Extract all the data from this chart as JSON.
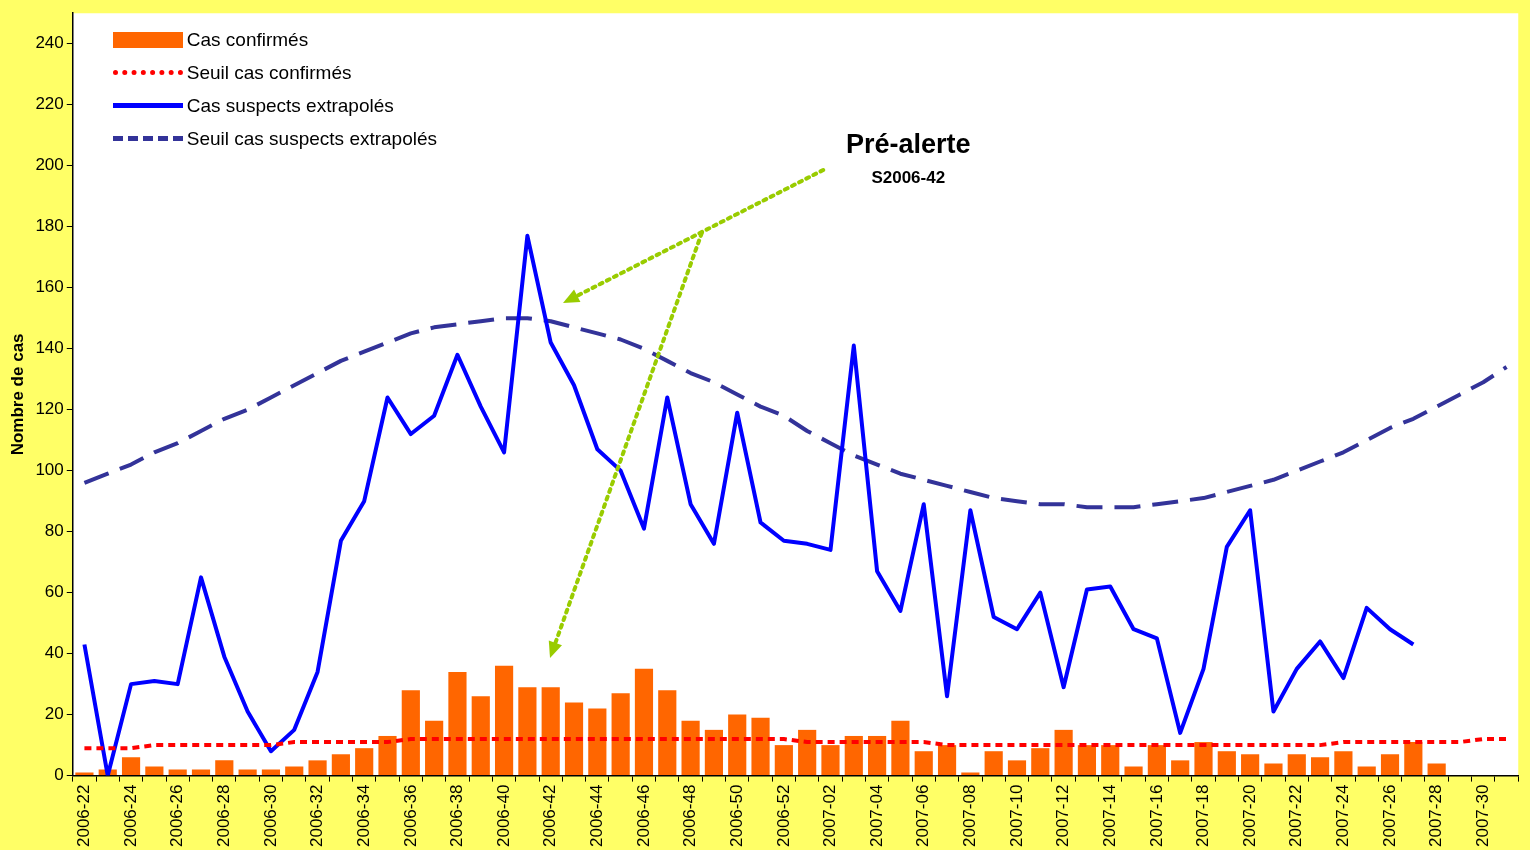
{
  "chart_data": {
    "type": "bar",
    "ylabel": "Nombre de cas",
    "ylim": [
      0,
      250
    ],
    "yticks": [
      0,
      20,
      40,
      60,
      80,
      100,
      120,
      140,
      160,
      180,
      200,
      220,
      240
    ],
    "grid": false,
    "legend": "top left",
    "marker": "none",
    "categories": [
      "2006-22",
      null,
      "2006-24",
      null,
      "2006-26",
      null,
      "2006-28",
      null,
      "2006-30",
      null,
      "2006-32",
      null,
      "2006-34",
      null,
      "2006-36",
      null,
      "2006-38",
      null,
      "2006-40",
      null,
      "2006-42",
      null,
      "2006-44",
      null,
      "2006-46",
      null,
      "2006-48",
      null,
      "2006-50",
      null,
      "2006-52",
      null,
      "2007-02",
      null,
      "2007-04",
      null,
      "2007-06",
      null,
      "2007-08",
      null,
      "2007-10",
      null,
      "2007-12",
      null,
      "2007-14",
      null,
      "2007-16",
      null,
      "2007-18",
      null,
      "2007-20",
      null,
      "2007-22",
      null,
      "2007-24",
      null,
      "2007-26",
      null,
      "2007-28",
      null,
      "2007-30",
      null
    ],
    "series": [
      {
        "name": "Cas confirmés",
        "color": "#ff6600",
        "values": [
          1,
          2,
          6,
          3,
          2,
          2,
          5,
          2,
          2,
          3,
          5,
          7,
          9,
          13,
          28,
          18,
          34,
          26,
          36,
          29,
          29,
          24,
          22,
          27,
          35,
          28,
          18,
          15,
          20,
          19,
          10,
          15,
          10,
          13,
          13,
          18,
          8,
          10,
          1,
          8,
          5,
          9,
          15,
          10,
          10,
          3,
          10,
          5,
          11,
          8,
          7,
          4,
          7,
          6,
          8,
          3,
          7,
          11,
          4,
          null,
          null,
          null
        ]
      },
      {
        "name": "Seuil cas confirmés",
        "type": "line",
        "line_style": "dotted",
        "color": "#ff0000",
        "values": [
          9,
          9,
          9,
          10,
          10,
          10,
          10,
          10,
          10,
          11,
          11,
          11,
          11,
          11,
          12,
          12,
          12,
          12,
          12,
          12,
          12,
          12,
          12,
          12,
          12,
          12,
          12,
          12,
          12,
          12,
          12,
          11,
          11,
          11,
          11,
          11,
          11,
          10,
          10,
          10,
          10,
          10,
          10,
          10,
          10,
          10,
          10,
          10,
          10,
          10,
          10,
          10,
          10,
          10,
          11,
          11,
          11,
          11,
          11,
          11,
          12,
          12
        ]
      },
      {
        "name": "Cas suspects extrapolés",
        "type": "line",
        "line_style": "solid",
        "color": "#0000ff",
        "values": [
          43,
          0,
          30,
          31,
          30,
          65,
          39,
          21,
          8,
          15,
          34,
          77,
          90,
          124,
          112,
          118,
          138,
          121,
          106,
          177,
          142,
          128,
          107,
          100,
          81,
          124,
          89,
          76,
          119,
          83,
          77,
          76,
          74,
          141,
          67,
          54,
          89,
          26,
          87,
          52,
          48,
          60,
          29,
          61,
          62,
          48,
          45,
          14,
          35,
          75,
          87,
          21,
          35,
          44,
          32,
          55,
          48,
          43,
          null,
          null,
          null,
          null
        ]
      },
      {
        "name": "Seuil cas suspects extrapolés",
        "type": "line",
        "line_style": "dashed",
        "color": "#333399",
        "values": [
          96,
          99,
          102,
          106,
          109,
          113,
          117,
          120,
          124,
          128,
          132,
          136,
          139,
          142,
          145,
          147,
          148,
          149,
          150,
          150,
          149,
          147,
          145,
          143,
          140,
          136,
          132,
          129,
          125,
          121,
          118,
          113,
          109,
          105,
          102,
          99,
          97,
          95,
          93,
          91,
          90,
          89,
          89,
          88,
          88,
          88,
          89,
          90,
          91,
          93,
          95,
          97,
          100,
          103,
          106,
          110,
          114,
          117,
          121,
          125,
          129,
          134
        ]
      }
    ],
    "annotations": [
      "Pré-alerte",
      "S2006-42"
    ]
  }
}
